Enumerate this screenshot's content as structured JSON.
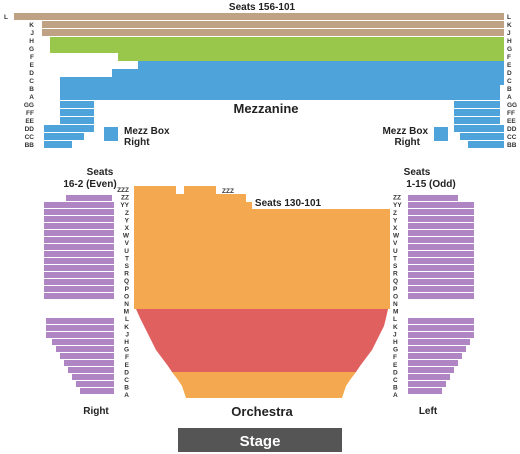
{
  "mezz_top_label": "Seats 156-101",
  "mezzanine_label": "Mezzanine",
  "mezz_box_right_line1": "Mezz Box",
  "mezz_box_right_line2": "Right",
  "mezz_box_left_line1": "Mezz Box",
  "mezz_box_left_line2": "Right",
  "mezz_rows": [
    "L",
    "K",
    "J",
    "H",
    "G",
    "F",
    "E",
    "D",
    "C",
    "B",
    "A",
    "GG",
    "FF",
    "EE",
    "DD",
    "CC",
    "BB"
  ],
  "seats_right_line1": "Seats",
  "seats_right_line2": "16-2 (Even)",
  "seats_left_line1": "Seats",
  "seats_left_line2": "1-15 (Odd)",
  "orch_center_label": "Seats 130-101",
  "orch_rows": [
    "ZZZ",
    "ZZ",
    "YY",
    "Z",
    "Y",
    "X",
    "W",
    "V",
    "U",
    "T",
    "S",
    "R",
    "Q",
    "P",
    "O",
    "N",
    "M",
    "L",
    "K",
    "J",
    "H",
    "G",
    "F",
    "E",
    "D",
    "C",
    "B",
    "A"
  ],
  "zzz_mid_label": "ZZZ",
  "right_label": "Right",
  "orchestra_label": "Orchestra",
  "left_label": "Left",
  "stage_label": "Stage",
  "colors": {
    "mezz_top": "#bfa184",
    "mezz_green": "#99c74b",
    "mezz_blue": "#4fa3db",
    "orch_orange": "#f4a950",
    "orch_red": "#e06060",
    "side_purple": "#b085c4",
    "stage": "#555555"
  }
}
